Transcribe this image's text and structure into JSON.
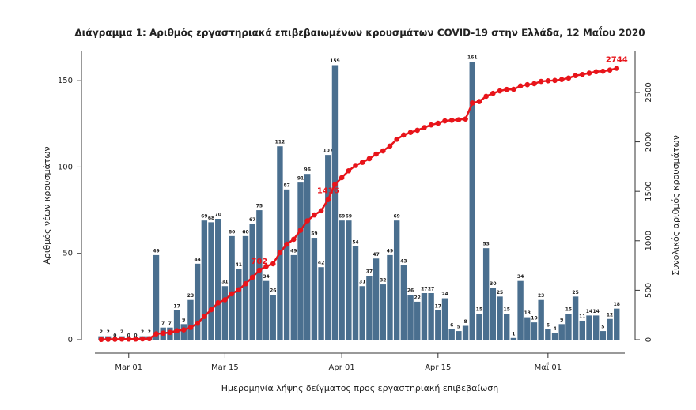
{
  "chart_data": {
    "type": "bar",
    "title": "Διάγραμμα 1: Αριθμός εργαστηριακά επιβεβαιωμένων κρουσμάτων COVID-19 στην Ελλάδα, 12 Μαΐου 2020",
    "x_label": "Ημερομηνία λήψης δείγματος προς εργαστηριακή επιβεβαίωση",
    "y_label": "Αριθμός νέων κρουσμάτων",
    "y2_label": "Συνολικός αριθμός κρουσμάτων",
    "categories": [
      "Feb 26",
      "Feb 27",
      "Feb 28",
      "Feb 29",
      "Mar 01",
      "Mar 02",
      "Mar 03",
      "Mar 04",
      "Mar 05",
      "Mar 06",
      "Mar 07",
      "Mar 08",
      "Mar 09",
      "Mar 10",
      "Mar 11",
      "Mar 12",
      "Mar 13",
      "Mar 14",
      "Mar 15",
      "Mar 16",
      "Mar 17",
      "Mar 18",
      "Mar 19",
      "Mar 20",
      "Mar 21",
      "Mar 22",
      "Mar 23",
      "Mar 24",
      "Mar 25",
      "Mar 26",
      "Mar 27",
      "Mar 28",
      "Mar 29",
      "Mar 30",
      "Mar 31",
      "Apr 01",
      "Apr 02",
      "Apr 03",
      "Apr 04",
      "Apr 05",
      "Apr 06",
      "Apr 07",
      "Apr 08",
      "Apr 09",
      "Apr 10",
      "Apr 11",
      "Apr 12",
      "Apr 13",
      "Apr 14",
      "Apr 15",
      "Apr 16",
      "Apr 17",
      "Apr 18",
      "Apr 19",
      "Apr 20",
      "Apr 21",
      "Apr 22",
      "Apr 23",
      "Apr 24",
      "Apr 25",
      "Apr 26",
      "Apr 27",
      "Apr 28",
      "Apr 29",
      "Apr 30",
      "Μαΐ 01",
      "Μαΐ 02",
      "Μαΐ 03",
      "Μαΐ 04",
      "Μαΐ 05",
      "Μαΐ 06",
      "Μαΐ 07",
      "Μαΐ 08",
      "Μαΐ 09",
      "Μαΐ 10",
      "Μαΐ 11"
    ],
    "xticks": [
      "Mar 01",
      "Mar 15",
      "Apr 01",
      "Apr 15",
      "Μαΐ 01"
    ],
    "series": [
      {
        "type": "bar",
        "color": "#4a6f8f",
        "values": [
          2,
          2,
          0,
          2,
          0,
          0,
          2,
          2,
          49,
          7,
          7,
          17,
          9,
          23,
          44,
          69,
          68,
          70,
          31,
          60,
          41,
          60,
          67,
          75,
          34,
          26,
          112,
          87,
          49,
          91,
          96,
          59,
          42,
          107,
          159,
          69,
          69,
          54,
          31,
          37,
          47,
          32,
          49,
          69,
          43,
          26,
          22,
          27,
          27,
          17,
          24,
          6,
          5,
          8,
          161,
          15,
          53,
          30,
          25,
          15,
          1,
          34,
          13,
          10,
          23,
          6,
          4,
          9,
          15,
          25,
          11,
          14,
          14,
          5,
          12,
          18
        ]
      },
      {
        "type": "line",
        "axis": "y2",
        "color": "#e8141a",
        "values": [
          2,
          4,
          4,
          6,
          6,
          6,
          8,
          10,
          59,
          66,
          73,
          90,
          99,
          122,
          166,
          235,
          303,
          373,
          404,
          464,
          505,
          565,
          632,
          702,
          741,
          767,
          879,
          966,
          1015,
          1106,
          1202,
          1261,
          1303,
          1416,
          1569,
          1638,
          1707,
          1761,
          1792,
          1829,
          1876,
          1908,
          1957,
          2026,
          2069,
          2095,
          2117,
          2144,
          2171,
          2188,
          2212,
          2218,
          2223,
          2231,
          2392,
          2407,
          2460,
          2490,
          2515,
          2530,
          2531,
          2565,
          2578,
          2588,
          2611,
          2617,
          2621,
          2630,
          2645,
          2670,
          2681,
          2695,
          2709,
          2714,
          2726,
          2744
        ],
        "value_labels": [
          null,
          null,
          null,
          null,
          null,
          null,
          null,
          null,
          null,
          null,
          null,
          null,
          null,
          null,
          null,
          null,
          null,
          null,
          null,
          null,
          null,
          null,
          null,
          "702",
          null,
          null,
          null,
          null,
          null,
          null,
          null,
          null,
          null,
          "1416",
          null,
          null,
          null,
          null,
          null,
          null,
          null,
          null,
          null,
          null,
          null,
          null,
          null,
          null,
          null,
          null,
          null,
          null,
          null,
          null,
          null,
          null,
          null,
          null,
          null,
          null,
          null,
          null,
          null,
          null,
          null,
          null,
          null,
          null,
          null,
          null,
          null,
          null,
          null,
          null,
          null,
          "2744"
        ]
      }
    ],
    "ylim": [
      0,
      167
    ],
    "yticks": [
      0,
      50,
      100,
      150
    ],
    "y2lim": [
      0,
      2915
    ],
    "y2ticks": [
      0,
      500,
      1000,
      1500,
      2000,
      2500
    ]
  }
}
